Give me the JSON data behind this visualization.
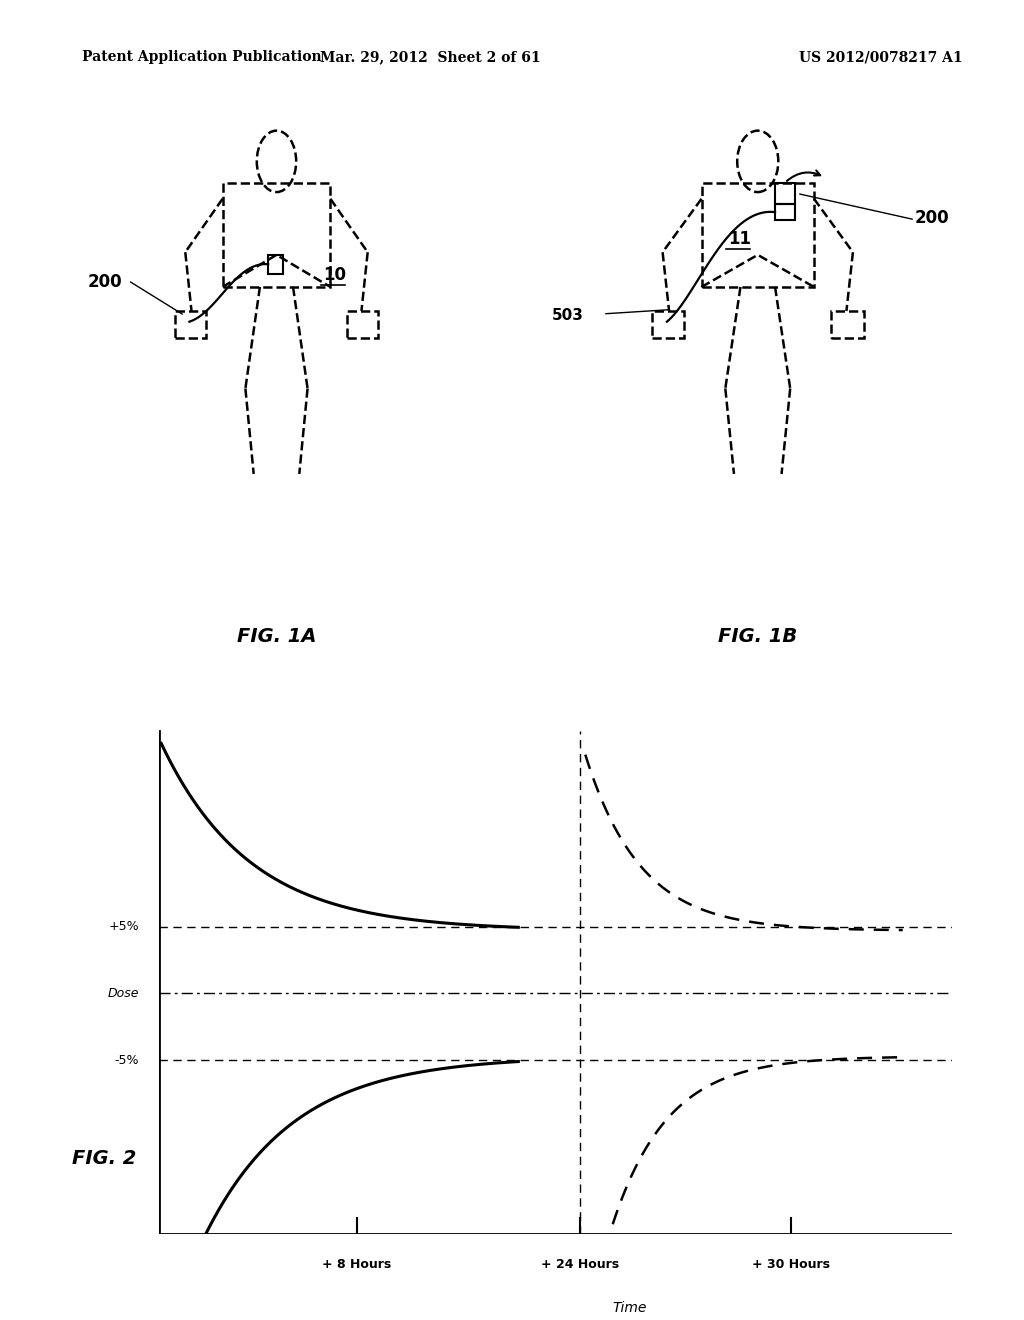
{
  "bg_color": "#ffffff",
  "header_left": "Patent Application Publication",
  "header_center": "Mar. 29, 2012  Sheet 2 of 61",
  "header_right": "US 2012/0078217 A1",
  "fig1a_label": "FIG. 1A",
  "fig1b_label": "FIG. 1B",
  "fig2_label": "FIG. 2",
  "label_10": "10",
  "label_11": "11",
  "label_200_left": "200",
  "label_200_right": "200",
  "label_503": "503",
  "dose_label": "Dose",
  "plus5_label": "+5%",
  "minus5_label": "-5%",
  "x8h_label": "+ 8 Hours",
  "x24h_label": "+ 24 Hours",
  "x30h_label": "+ 30 Hours",
  "time_label": "Time"
}
